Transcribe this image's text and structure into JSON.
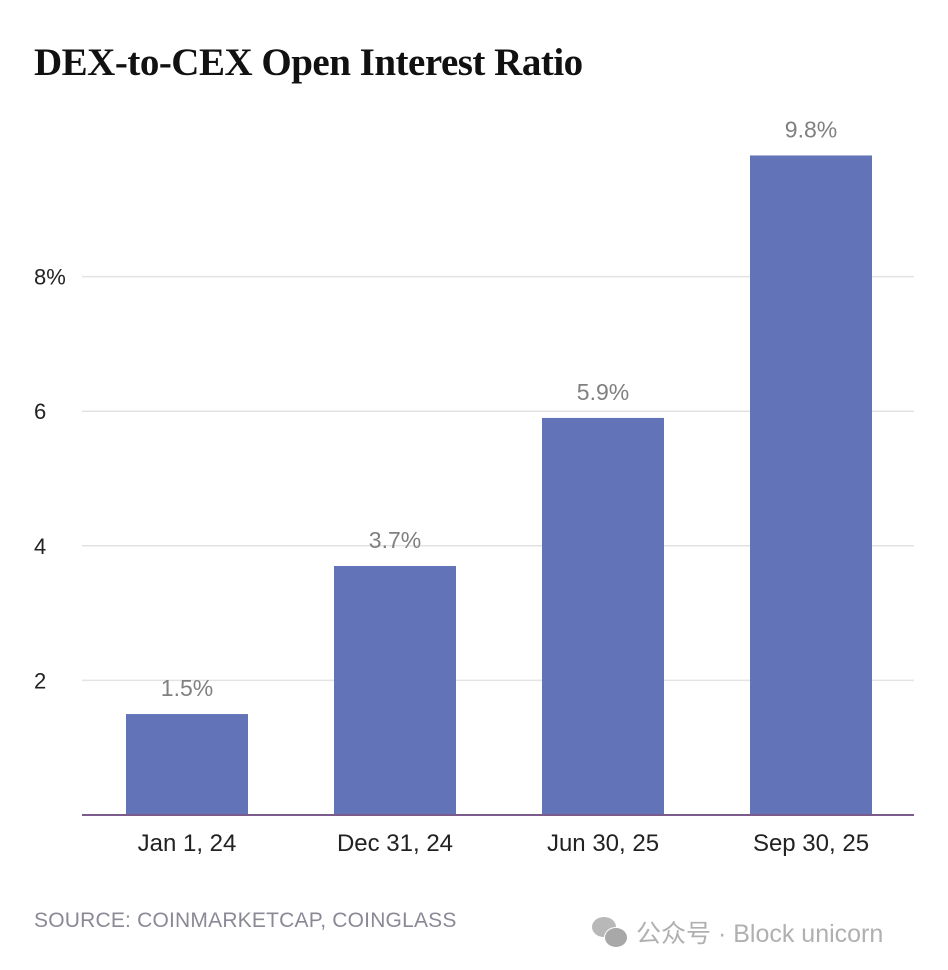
{
  "title": "DEX-to-CEX Open Interest Ratio",
  "source": "SOURCE: COINMARKETCAP, COINGLASS",
  "watermark": "公众号 · Block unicorn",
  "colors": {
    "bar": "#6273b7",
    "grid": "#e3e3e3",
    "baseline": "#7b5b8c",
    "label": "#808080"
  },
  "chart_data": {
    "type": "bar",
    "title": "DEX-to-CEX Open Interest Ratio",
    "categories": [
      "Jan 1, 24",
      "Dec 31, 24",
      "Jun 30, 25",
      "Sep 30, 25"
    ],
    "values": [
      1.5,
      3.7,
      5.9,
      9.8
    ],
    "data_labels": [
      "1.5%",
      "3.7%",
      "5.9%",
      "9.8%"
    ],
    "yticks": [
      2,
      4,
      6,
      8
    ],
    "ytick_labels": [
      "2",
      "4",
      "6",
      "8%"
    ],
    "ylim": [
      0,
      10
    ],
    "grid": true,
    "xlabel": "",
    "ylabel": ""
  }
}
